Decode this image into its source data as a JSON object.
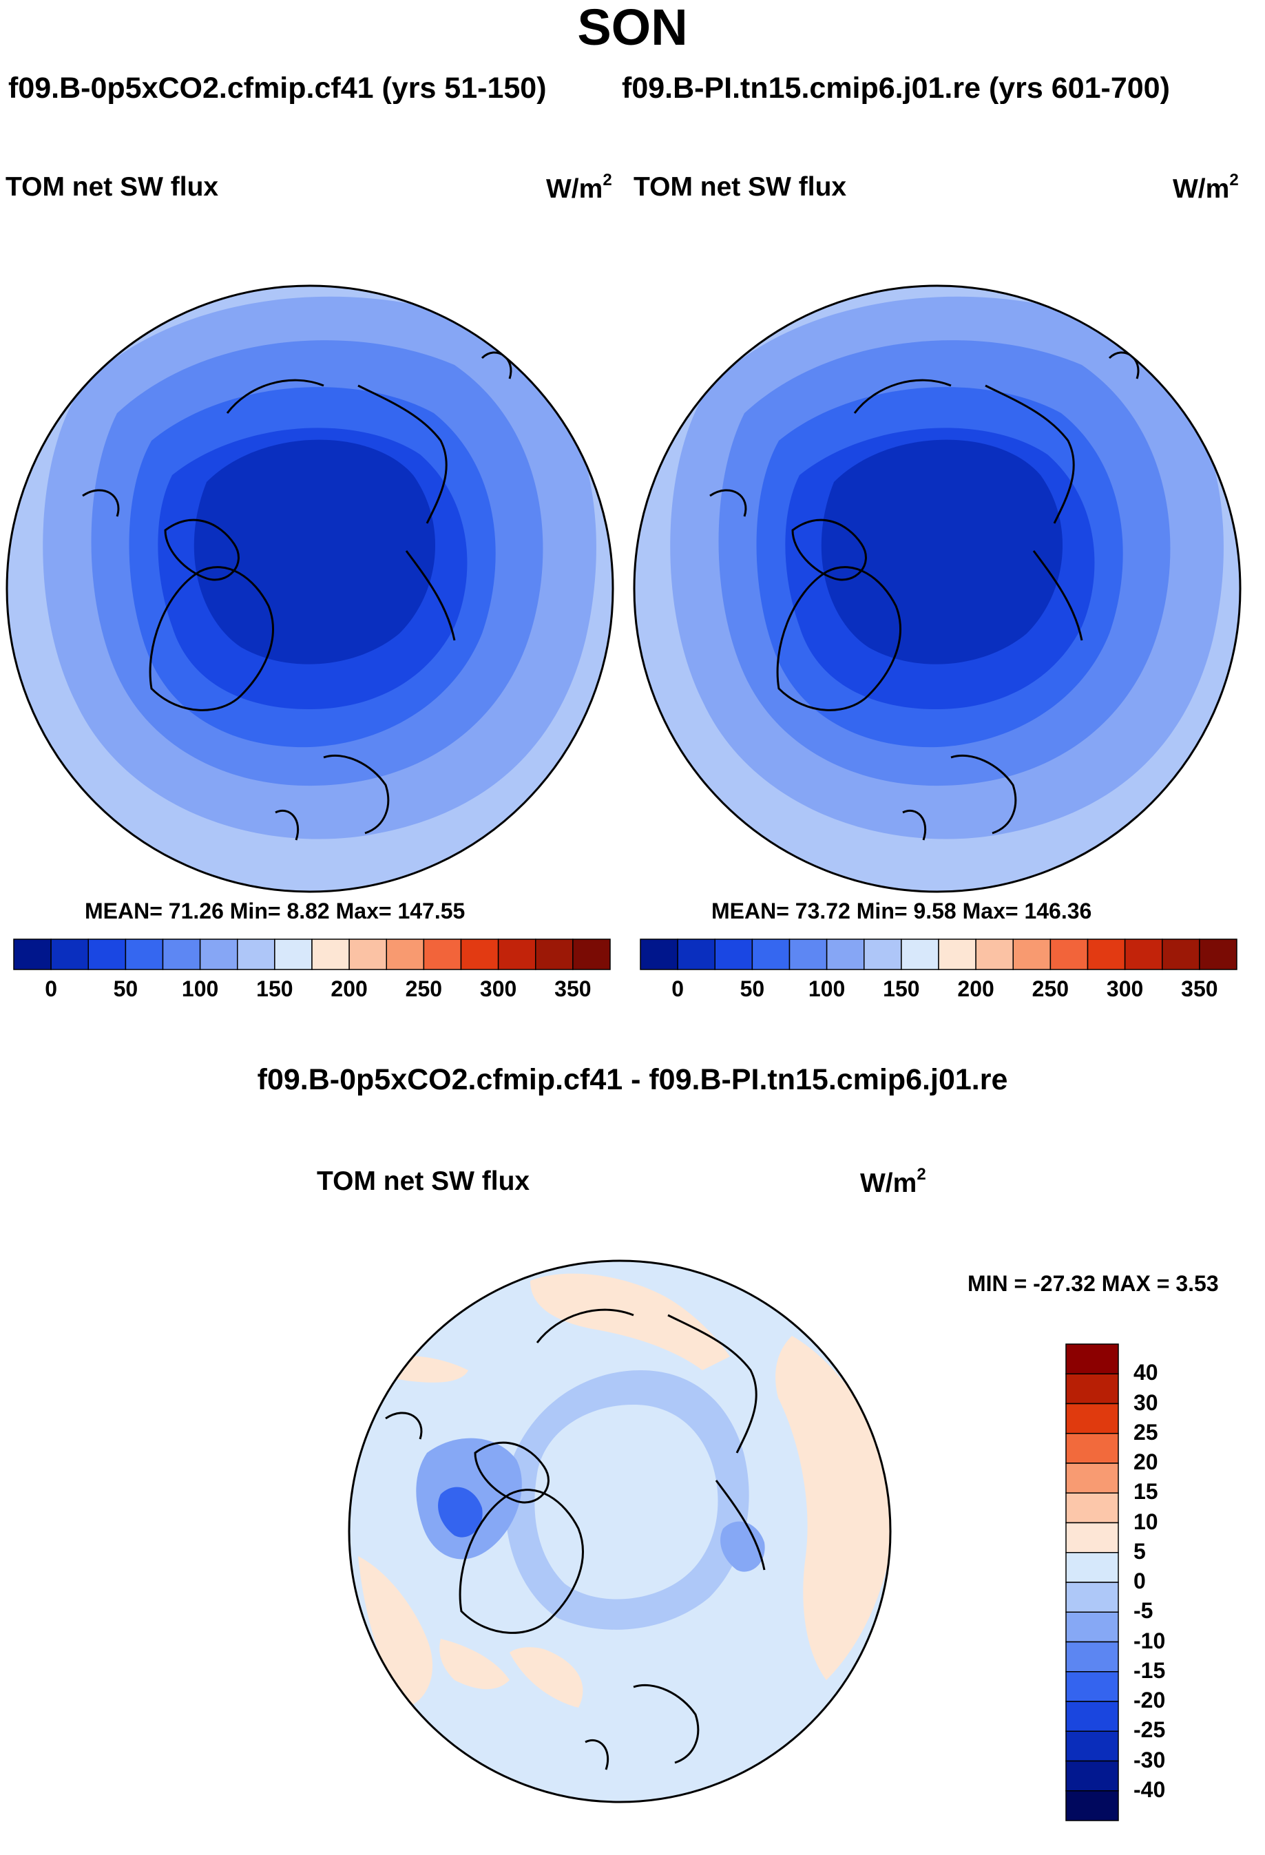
{
  "title": "SON",
  "subtitle_left": "f09.B-0p5xCO2.cfmip.cf41 (yrs 51-150)",
  "subtitle_right": "f09.B-PI.tn15.cmip6.j01.re (yrs 601-700)",
  "panels": [
    {
      "variable": "TOM net SW flux",
      "units": "W/m",
      "units_exp": "2",
      "stats": "MEAN=  71.26  Min=   8.82  Max= 147.55"
    },
    {
      "variable": "TOM net SW flux",
      "units": "W/m",
      "units_exp": "2",
      "stats": "MEAN=  73.72  Min=   9.58  Max= 146.36"
    }
  ],
  "colorbar_top": {
    "labels": [
      "0",
      "50",
      "100",
      "150",
      "200",
      "250",
      "300",
      "350"
    ],
    "colors": [
      "#00168c",
      "#0a2fbf",
      "#1a47e3",
      "#3567f0",
      "#5d87f3",
      "#86a6f5",
      "#aec6f8",
      "#d8e8fb",
      "#fde6d4",
      "#fbc2a4",
      "#f89a70",
      "#f2643a",
      "#e23a12",
      "#c2230a",
      "#9c1806",
      "#7a0b04"
    ]
  },
  "diff": {
    "title": "f09.B-0p5xCO2.cfmip.cf41 - f09.B-PI.tn15.cmip6.j01.re",
    "variable": "TOM net SW flux",
    "units": "W/m",
    "units_exp": "2",
    "minmax": "MIN = -27.32 MAX =    3.53",
    "colorbar_labels": [
      "40",
      "30",
      "25",
      "20",
      "15",
      "10",
      "5",
      "0",
      "-5",
      "-10",
      "-15",
      "-20",
      "-25",
      "-30",
      "-40"
    ],
    "colorbar_colors": [
      "#8c0000",
      "#b81f05",
      "#e03a0e",
      "#f26a3c",
      "#f89b72",
      "#fcc7aa",
      "#fde6d6",
      "#d6e8fb",
      "#aec8f8",
      "#86a8f5",
      "#5c86f2",
      "#3464ef",
      "#1a46df",
      "#0a2dbb",
      "#021890",
      "#00085e"
    ]
  },
  "map_colors": {
    "lvl1": "#aec6f8",
    "lvl2": "#86a6f5",
    "lvl3": "#5d87f3",
    "lvl4": "#3567f0",
    "lvl5": "#1a47e3",
    "lvl6": "#0a2fbf",
    "diff_base": "#d7e8fb",
    "diff_pos": "#fde6d4",
    "diff_neg1": "#aec8f8",
    "diff_neg2": "#86a8f5",
    "diff_neg3": "#3464ef"
  }
}
